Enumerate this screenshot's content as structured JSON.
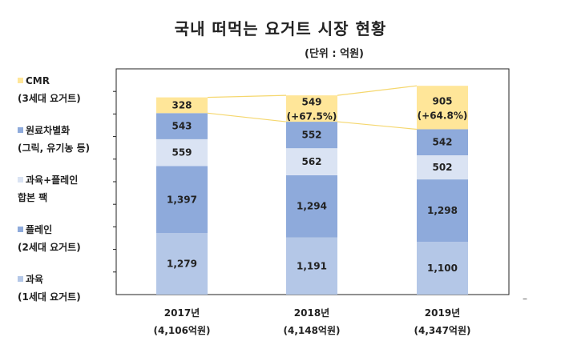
{
  "chart_data": {
    "type": "bar",
    "stacked": true,
    "title": "국내 떠먹는 요거트 시장 현황",
    "unit": "(단위 : 억원)",
    "categories": [
      "2017년",
      "2018년",
      "2019년"
    ],
    "category_totals": [
      "(4,106억원)",
      "(4,148억원)",
      "(4,347억원)"
    ],
    "series": [
      {
        "name": "과육",
        "name_line2": "(1세대 요거트)",
        "color": "#b4c7e7",
        "values": [
          1279,
          1191,
          1100
        ],
        "labels": [
          "1,279",
          "1,191",
          "1,100"
        ]
      },
      {
        "name": "플레인",
        "name_line2": "(2세대 요거트)",
        "color": "#8eaadb",
        "values": [
          1397,
          1294,
          1298
        ],
        "labels": [
          "1,397",
          "1,294",
          "1,298"
        ]
      },
      {
        "name": "과육+플레인",
        "name_line2": "합본 팩",
        "color": "#dae3f3",
        "values": [
          559,
          562,
          502
        ],
        "labels": [
          "559",
          "562",
          "502"
        ]
      },
      {
        "name": "원료차별화",
        "name_line2": "(그릭, 유기농 등)",
        "color": "#8eaadb",
        "values": [
          543,
          552,
          542
        ],
        "labels": [
          "543",
          "552",
          "542"
        ]
      },
      {
        "name": "CMR",
        "name_line2": "(3세대 요거트)",
        "color": "#ffe699",
        "values": [
          328,
          549,
          905
        ],
        "labels": [
          "328",
          "549",
          "905"
        ]
      }
    ],
    "growth_labels": [
      "",
      "(+67.5%)",
      "(+64.8%)"
    ],
    "ylim": [
      0,
      4700
    ],
    "grid": true,
    "legend_position": "left",
    "connector_color": "#f5d76e",
    "footer_mark": "–"
  }
}
